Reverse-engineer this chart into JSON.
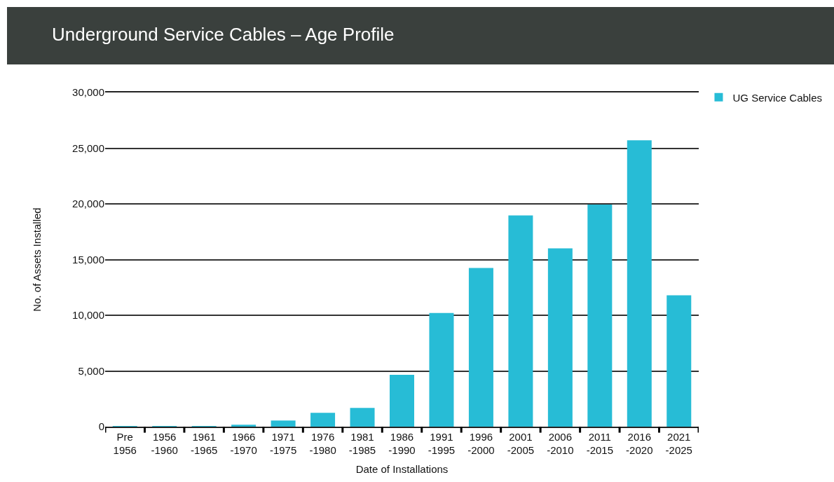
{
  "chart_data": {
    "type": "bar",
    "title": "Underground Service Cables – Age Profile",
    "xlabel": "Date of Installations",
    "ylabel": "No. of Assets Installed",
    "categories": [
      "Pre\n1956",
      "1956\n-1960",
      "1961\n-1965",
      "1966\n-1970",
      "1971\n-1975",
      "1976\n-1980",
      "1981\n-1985",
      "1986\n-1990",
      "1991\n-1995",
      "1996\n-2000",
      "2001\n-2005",
      "2006\n-2010",
      "2011\n-2015",
      "2016\n-2020",
      "2021\n-2025"
    ],
    "series": [
      {
        "name": "UG Service Cables",
        "color": "#27bcd6",
        "values": [
          60,
          60,
          60,
          180,
          550,
          1240,
          1690,
          4650,
          10200,
          14240,
          18960,
          16000,
          19930,
          25700,
          11800
        ]
      }
    ],
    "ylim": [
      0,
      30000
    ],
    "yticks": [
      {
        "value": 0,
        "label": "0"
      },
      {
        "value": 5000,
        "label": "5,000"
      },
      {
        "value": 10000,
        "label": "10,000"
      },
      {
        "value": 15000,
        "label": "15,000"
      },
      {
        "value": 20000,
        "label": "20,000"
      },
      {
        "value": 25000,
        "label": "25,000"
      },
      {
        "value": 30000,
        "label": "30,000"
      }
    ],
    "grid": "y",
    "legend": "top right"
  }
}
